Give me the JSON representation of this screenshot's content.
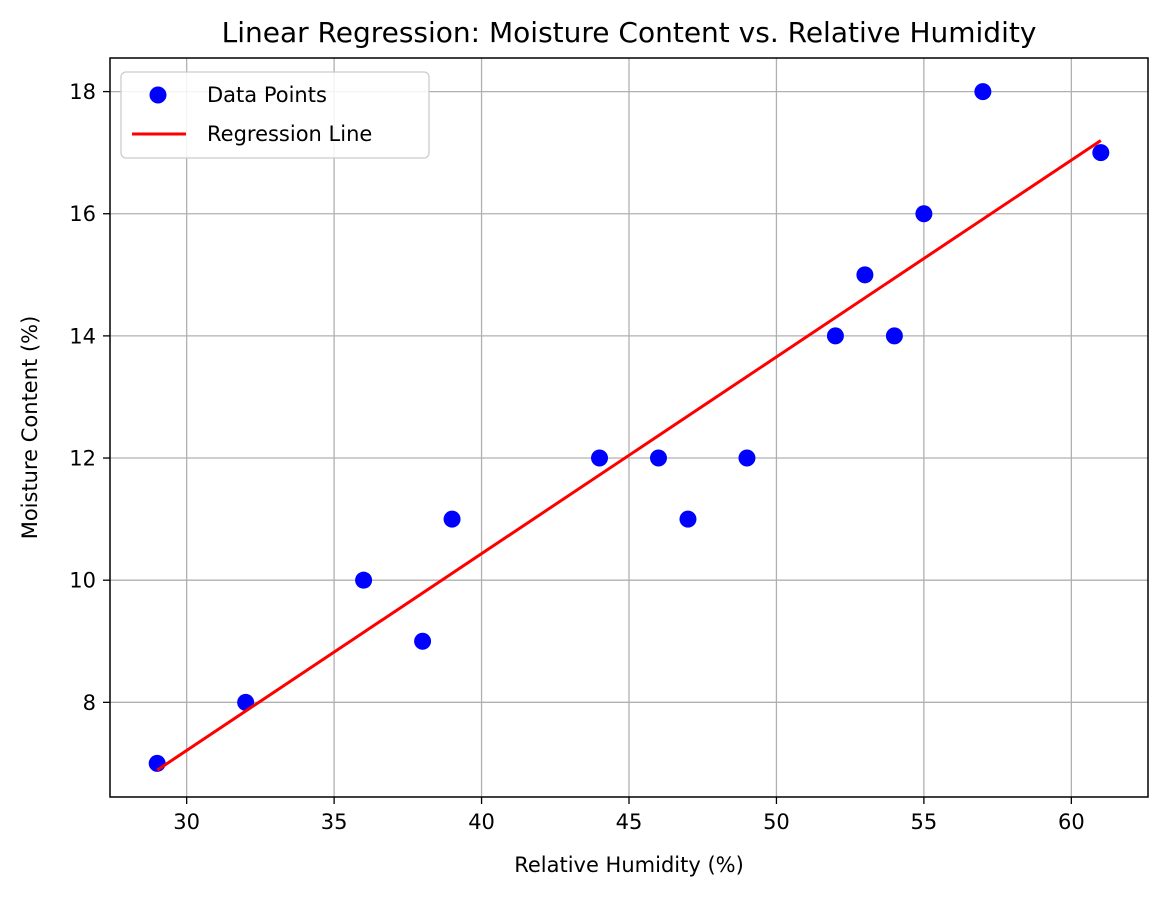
{
  "chart_data": {
    "type": "scatter",
    "title": "Linear Regression: Moisture Content vs. Relative Humidity",
    "xlabel": "Relative Humidity (%)",
    "ylabel": "Moisture Content (%)",
    "xlim": [
      27.4,
      62.6
    ],
    "ylim": [
      6.45,
      18.55
    ],
    "xticks": [
      30,
      35,
      40,
      45,
      50,
      55,
      60
    ],
    "yticks": [
      8,
      10,
      12,
      14,
      16,
      18
    ],
    "grid": true,
    "legend_position": "top-left",
    "series": [
      {
        "name": "Data Points",
        "kind": "scatter",
        "color": "#0000ff",
        "x": [
          29,
          32,
          36,
          38,
          39,
          44,
          46,
          47,
          49,
          52,
          53,
          54,
          55,
          57,
          61
        ],
        "y": [
          7,
          8,
          10,
          9,
          11,
          12,
          12,
          11,
          12,
          14,
          15,
          14,
          16,
          18,
          17
        ]
      },
      {
        "name": "Regression Line",
        "kind": "line",
        "color": "#ff0000",
        "x": [
          29,
          61
        ],
        "y": [
          6.89,
          17.2
        ]
      }
    ]
  }
}
